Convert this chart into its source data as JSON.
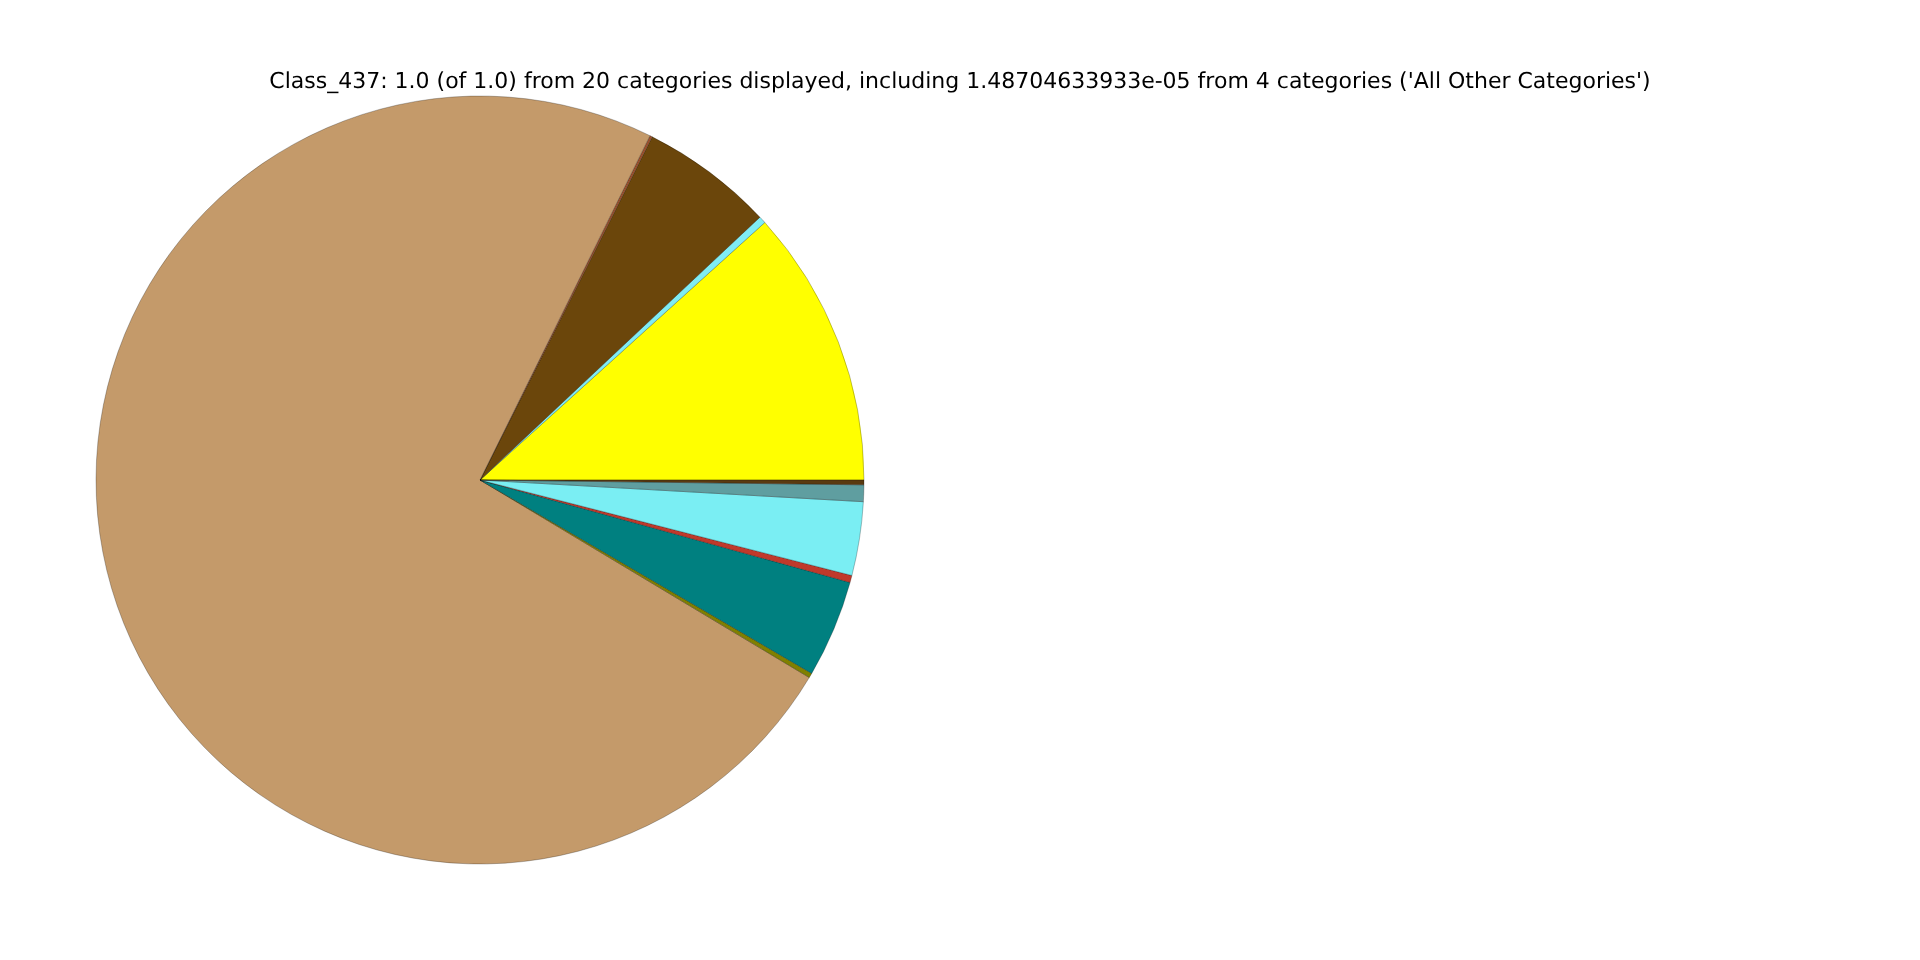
{
  "chart_data": {
    "type": "pie",
    "title": "Class_437: 1.0 (of 1.0) from 20 categories displayed, including 1.48704633933e-05 from 4 categories ('All Other Categories')",
    "categories": [
      null,
      null,
      null,
      null,
      null,
      null,
      null,
      null,
      null,
      null,
      null
    ],
    "values": [
      11.7,
      0.3,
      5.6,
      0.1,
      73.7,
      0.2,
      4.1,
      0.3,
      3.1,
      0.7,
      0.2
    ],
    "colors": [
      "#ffff00",
      "#7fecf4",
      "#6b460b",
      "#a0522d",
      "#c49a6a",
      "#808000",
      "#008080",
      "#c0392b",
      "#7aeef3",
      "#5f9ea0",
      "#5a3a10"
    ],
    "legend": false
  }
}
